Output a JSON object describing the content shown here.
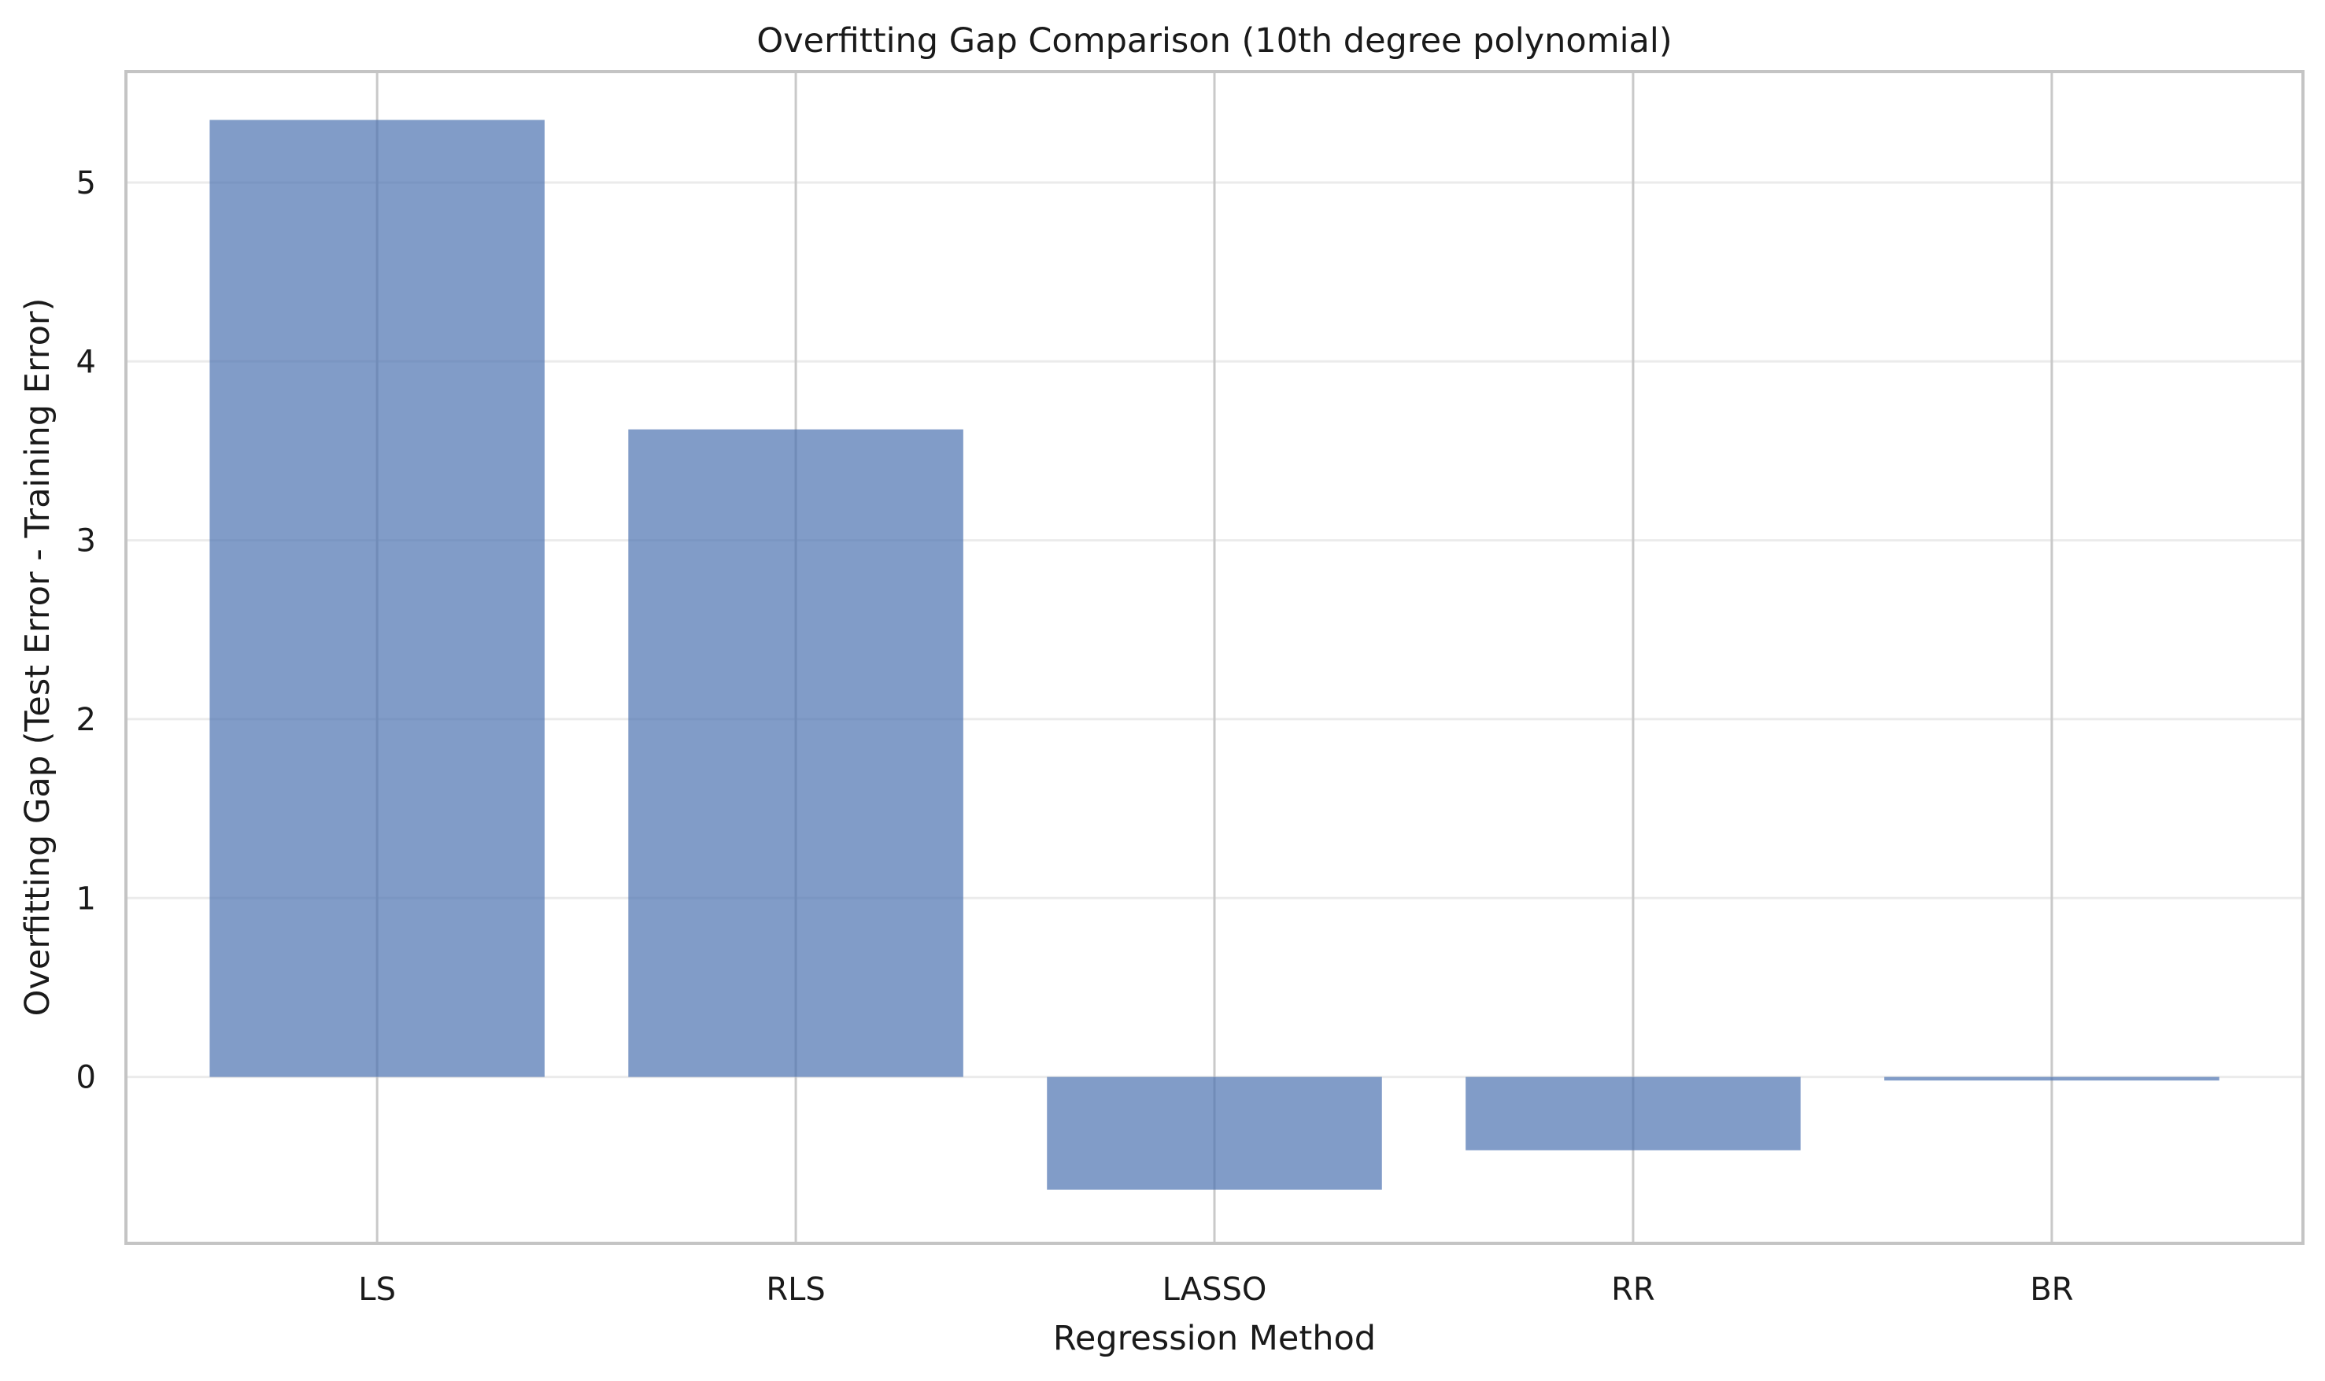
{
  "chart_data": {
    "type": "bar",
    "title": "Overfitting Gap Comparison (10th degree polynomial)",
    "xlabel": "Regression Method",
    "ylabel": "Overfitting Gap (Test Error - Training Error)",
    "categories": [
      "LS",
      "RLS",
      "LASSO",
      "RR",
      "BR"
    ],
    "values": [
      5.35,
      3.62,
      -0.63,
      -0.41,
      -0.02
    ],
    "ylim": [
      -0.93,
      5.62
    ],
    "yticks": [
      0,
      1,
      2,
      3,
      4,
      5
    ],
    "grid": true,
    "bar_color": "#4c72b0",
    "bar_opacity": 0.7
  }
}
